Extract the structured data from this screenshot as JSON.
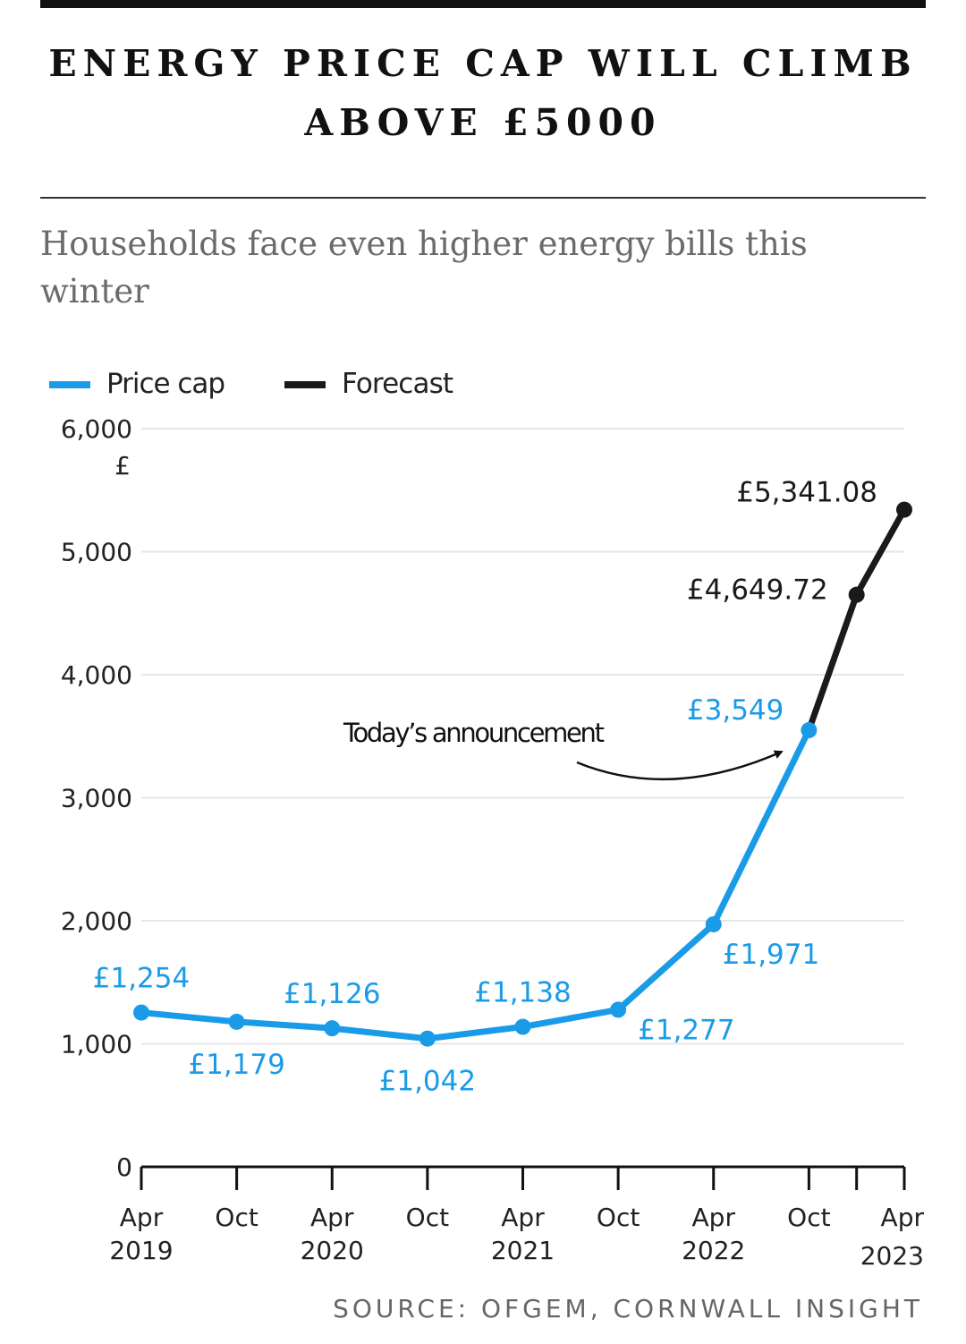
{
  "header": {
    "title": "ENERGY PRICE CAP WILL CLIMB ABOVE £5000",
    "subtitle": "Households face even higher energy bills this winter",
    "source": "SOURCE: OFGEM, CORNWALL INSIGHT"
  },
  "colors": {
    "price_cap": "#1a9be8",
    "forecast": "#1a1a1a",
    "grid": "#e6e6e6",
    "axis": "#111111"
  },
  "chart_data": {
    "type": "line",
    "title": "ENERGY PRICE CAP WILL CLIMB ABOVE £5000",
    "subtitle": "Households face even higher energy bills this winter",
    "xlabel": "",
    "ylabel": "£",
    "ylim": [
      0,
      6000
    ],
    "yticks": [
      "0",
      "1,000",
      "2,000",
      "3,000",
      "4,000",
      "5,000",
      "6,000"
    ],
    "ytick_values": [
      0,
      1000,
      2000,
      3000,
      4000,
      5000,
      6000
    ],
    "grid": true,
    "legend_position": "top-left",
    "x_ticks": [
      {
        "t": 0,
        "label": [
          "Apr",
          "2019"
        ]
      },
      {
        "t": 6,
        "label": [
          "Oct"
        ]
      },
      {
        "t": 12,
        "label": [
          "Apr",
          "2020"
        ]
      },
      {
        "t": 18,
        "label": [
          "Oct"
        ]
      },
      {
        "t": 24,
        "label": [
          "Apr",
          "2021"
        ]
      },
      {
        "t": 30,
        "label": [
          "Oct"
        ]
      },
      {
        "t": 36,
        "label": [
          "Apr",
          "2022"
        ]
      },
      {
        "t": 42,
        "label": [
          "Oct"
        ]
      },
      {
        "t": 45,
        "label": []
      },
      {
        "t": 48,
        "label": [
          "Apr",
          "2023"
        ]
      }
    ],
    "series": [
      {
        "name": "Price cap",
        "color": "#1a9be8",
        "points": [
          {
            "x": "Apr 2019",
            "t": 0,
            "y": 1254,
            "label": "£1,254",
            "pos": "above"
          },
          {
            "x": "Oct 2019",
            "t": 6,
            "y": 1179,
            "label": "£1,179",
            "pos": "below"
          },
          {
            "x": "Apr 2020",
            "t": 12,
            "y": 1126,
            "label": "£1,126",
            "pos": "above"
          },
          {
            "x": "Oct 2020",
            "t": 18,
            "y": 1042,
            "label": "£1,042",
            "pos": "below"
          },
          {
            "x": "Apr 2021",
            "t": 24,
            "y": 1138,
            "label": "£1,138",
            "pos": "above"
          },
          {
            "x": "Oct 2021",
            "t": 30,
            "y": 1277,
            "label": "£1,277",
            "pos": "below-right"
          },
          {
            "x": "Apr 2022",
            "t": 36,
            "y": 1971,
            "label": "£1,971",
            "pos": "below-right"
          },
          {
            "x": "Oct 2022",
            "t": 42,
            "y": 3549,
            "label": "£3,549",
            "pos": "above-left"
          }
        ]
      },
      {
        "name": "Forecast",
        "color": "#1a1a1a",
        "points": [
          {
            "x": "Oct 2022",
            "t": 42,
            "y": 3549,
            "label": "",
            "pos": "none"
          },
          {
            "x": "Jan 2023",
            "t": 45,
            "y": 4649.72,
            "label": "£4,649.72",
            "pos": "left"
          },
          {
            "x": "Apr 2023",
            "t": 48,
            "y": 5341.08,
            "label": "£5,341.08",
            "pos": "above-left"
          }
        ]
      }
    ],
    "annotation": {
      "text": "Today’s announcement",
      "target": "Oct 2022"
    }
  }
}
